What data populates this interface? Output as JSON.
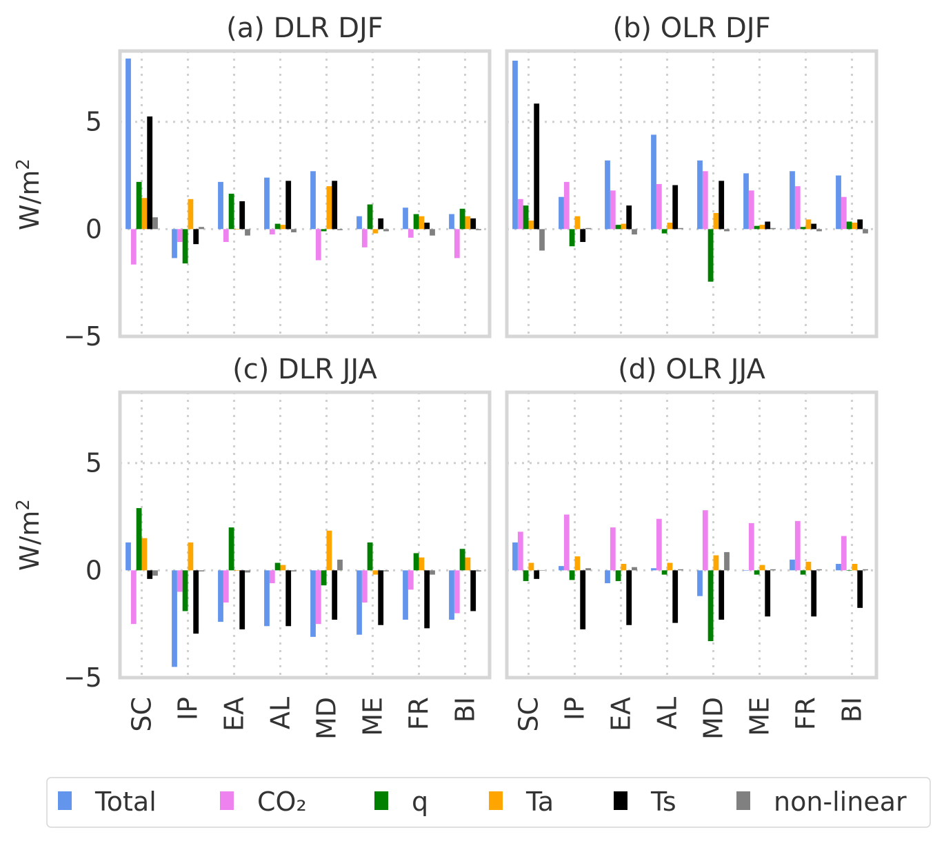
{
  "figure": {
    "ylabel": "W/m",
    "ylabel_sup": "2",
    "legend": [
      {
        "name": "Total",
        "color": "#6495ED"
      },
      {
        "name": "CO₂",
        "color": "#EE82EE"
      },
      {
        "name": "q",
        "color": "#008000"
      },
      {
        "name": "Ta",
        "color": "#FFA500"
      },
      {
        "name": "Ts",
        "color": "#000000"
      },
      {
        "name": "non-linear",
        "color": "#808080"
      }
    ]
  },
  "chart_data": [
    {
      "type": "bar",
      "title": "(a) DLR DJF",
      "categories": [
        "SC",
        "IP",
        "EA",
        "AL",
        "MD",
        "ME",
        "FR",
        "BI"
      ],
      "ylim": [
        -5,
        8.3
      ],
      "yticks": [
        -5,
        0,
        5
      ],
      "ytick_labels": [
        "−5",
        "0",
        "5"
      ],
      "grid": true,
      "series": [
        {
          "name": "Total",
          "color": "#6495ED",
          "values": [
            7.95,
            -1.35,
            2.2,
            2.4,
            2.7,
            0.6,
            1.0,
            0.7
          ]
        },
        {
          "name": "CO₂",
          "color": "#EE82EE",
          "values": [
            -1.65,
            -0.6,
            -0.6,
            -0.25,
            -1.45,
            -0.85,
            -0.4,
            -1.35
          ]
        },
        {
          "name": "q",
          "color": "#008000",
          "values": [
            2.2,
            -1.6,
            1.65,
            0.25,
            -0.1,
            1.15,
            0.7,
            0.95
          ]
        },
        {
          "name": "Ta",
          "color": "#FFA500",
          "values": [
            1.45,
            1.4,
            0.0,
            0.2,
            2.0,
            -0.2,
            0.6,
            0.6
          ]
        },
        {
          "name": "Ts",
          "color": "#000000",
          "values": [
            5.25,
            -0.7,
            1.3,
            2.25,
            2.25,
            0.5,
            0.3,
            0.5
          ]
        },
        {
          "name": "non-linear",
          "color": "#808080",
          "values": [
            0.55,
            0.1,
            -0.3,
            -0.15,
            -0.05,
            -0.1,
            -0.3,
            -0.05
          ]
        }
      ]
    },
    {
      "type": "bar",
      "title": "(b) OLR DJF",
      "categories": [
        "SC",
        "IP",
        "EA",
        "AL",
        "MD",
        "ME",
        "FR",
        "BI"
      ],
      "ylim": [
        -5,
        8.3
      ],
      "yticks": [
        -5,
        0,
        5
      ],
      "grid": true,
      "series": [
        {
          "name": "Total",
          "color": "#6495ED",
          "values": [
            7.85,
            1.5,
            3.2,
            4.4,
            3.2,
            2.6,
            2.7,
            2.5
          ]
        },
        {
          "name": "CO₂",
          "color": "#EE82EE",
          "values": [
            1.4,
            2.2,
            1.8,
            2.1,
            2.7,
            1.8,
            2.0,
            1.5
          ]
        },
        {
          "name": "q",
          "color": "#008000",
          "values": [
            1.1,
            -0.8,
            0.2,
            -0.2,
            -2.45,
            0.15,
            0.1,
            0.35
          ]
        },
        {
          "name": "Ta",
          "color": "#FFA500",
          "values": [
            0.4,
            0.6,
            0.25,
            0.3,
            0.75,
            0.2,
            0.45,
            0.3
          ]
        },
        {
          "name": "Ts",
          "color": "#000000",
          "values": [
            5.85,
            -0.6,
            1.1,
            2.05,
            2.25,
            0.35,
            0.25,
            0.45
          ]
        },
        {
          "name": "non-linear",
          "color": "#808080",
          "values": [
            -1.0,
            0.05,
            -0.25,
            0.05,
            -0.1,
            0.05,
            -0.1,
            -0.2
          ]
        }
      ]
    },
    {
      "type": "bar",
      "title": "(c) DLR JJA",
      "categories": [
        "SC",
        "IP",
        "EA",
        "AL",
        "MD",
        "ME",
        "FR",
        "BI"
      ],
      "ylim": [
        -5,
        8.3
      ],
      "yticks": [
        -5,
        0,
        5
      ],
      "ytick_labels": [
        "−5",
        "0",
        "5"
      ],
      "grid": true,
      "series": [
        {
          "name": "Total",
          "color": "#6495ED",
          "values": [
            1.3,
            -4.5,
            -2.4,
            -2.6,
            -3.1,
            -3.0,
            -2.3,
            -2.3
          ]
        },
        {
          "name": "CO₂",
          "color": "#EE82EE",
          "values": [
            -2.5,
            -1.0,
            -1.5,
            -0.6,
            -2.5,
            -1.5,
            -0.9,
            -2.0
          ]
        },
        {
          "name": "q",
          "color": "#008000",
          "values": [
            2.9,
            -1.9,
            2.0,
            0.35,
            -0.7,
            1.3,
            0.8,
            1.0
          ]
        },
        {
          "name": "Ta",
          "color": "#FFA500",
          "values": [
            1.5,
            1.3,
            0.0,
            0.25,
            1.85,
            -0.2,
            0.6,
            0.6
          ]
        },
        {
          "name": "Ts",
          "color": "#000000",
          "values": [
            -0.4,
            -2.95,
            -2.75,
            -2.6,
            -2.3,
            -2.55,
            -2.7,
            -1.9
          ]
        },
        {
          "name": "non-linear",
          "color": "#808080",
          "values": [
            -0.25,
            -0.05,
            -0.1,
            -0.05,
            0.5,
            -0.05,
            -0.2,
            -0.05
          ]
        }
      ]
    },
    {
      "type": "bar",
      "title": "(d) OLR JJA",
      "categories": [
        "SC",
        "IP",
        "EA",
        "AL",
        "MD",
        "ME",
        "FR",
        "BI"
      ],
      "ylim": [
        -5,
        8.3
      ],
      "yticks": [
        -5,
        0,
        5
      ],
      "grid": true,
      "series": [
        {
          "name": "Total",
          "color": "#6495ED",
          "values": [
            1.3,
            0.2,
            -0.6,
            0.1,
            -1.2,
            0.0,
            0.5,
            0.3
          ]
        },
        {
          "name": "CO₂",
          "color": "#EE82EE",
          "values": [
            1.8,
            2.6,
            2.0,
            2.4,
            2.8,
            2.2,
            2.3,
            1.6
          ]
        },
        {
          "name": "q",
          "color": "#008000",
          "values": [
            -0.5,
            -0.45,
            -0.5,
            -0.2,
            -3.3,
            -0.2,
            -0.2,
            0.0
          ]
        },
        {
          "name": "Ta",
          "color": "#FFA500",
          "values": [
            0.35,
            0.65,
            0.3,
            0.35,
            0.7,
            0.25,
            0.4,
            0.3
          ]
        },
        {
          "name": "Ts",
          "color": "#000000",
          "values": [
            -0.4,
            -2.75,
            -2.55,
            -2.45,
            -2.3,
            -2.15,
            -2.15,
            -1.75
          ]
        },
        {
          "name": "non-linear",
          "color": "#808080",
          "values": [
            0.0,
            0.1,
            0.15,
            0.05,
            0.85,
            0.05,
            0.05,
            0.05
          ]
        }
      ]
    }
  ]
}
